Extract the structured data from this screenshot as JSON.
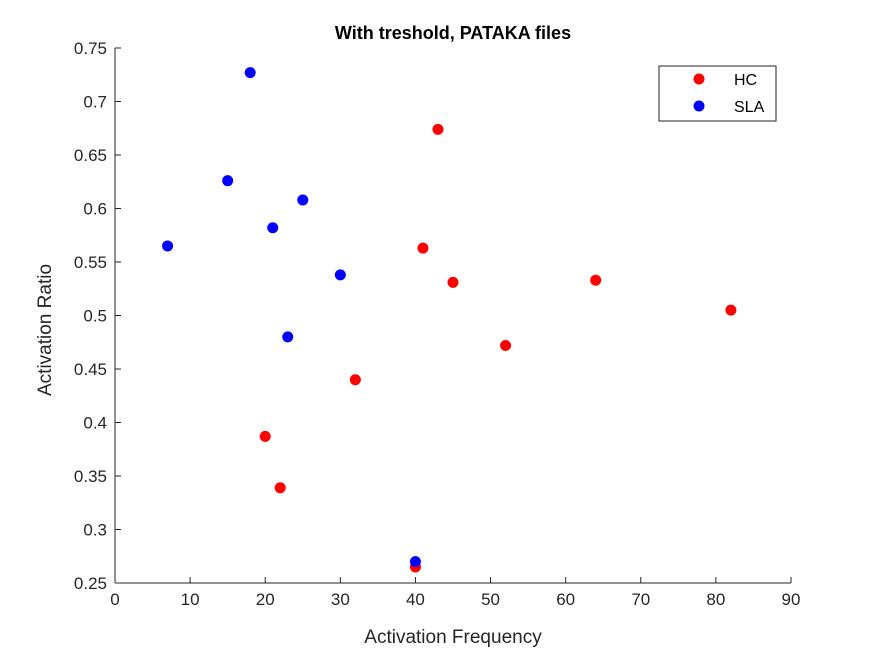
{
  "chart_data": {
    "type": "scatter",
    "title": "With treshold, PATAKA files",
    "xlabel": "Activation Frequency",
    "ylabel": "Activation Ratio",
    "xlim": [
      0,
      90
    ],
    "ylim": [
      0.25,
      0.75
    ],
    "xticks": [
      0,
      10,
      20,
      30,
      40,
      50,
      60,
      70,
      80,
      90
    ],
    "yticks": [
      0.25,
      0.3,
      0.35,
      0.4,
      0.45,
      0.5,
      0.55,
      0.6,
      0.65,
      0.7,
      0.75
    ],
    "xtick_labels": [
      "0",
      "10",
      "20",
      "30",
      "40",
      "50",
      "60",
      "70",
      "80",
      "90"
    ],
    "ytick_labels": [
      "0.25",
      "0.3",
      "0.35",
      "0.4",
      "0.45",
      "0.5",
      "0.55",
      "0.6",
      "0.65",
      "0.7",
      "0.75"
    ],
    "grid": false,
    "legend_position": "top-right",
    "series": [
      {
        "name": "HC",
        "color": "#ff0000",
        "points": [
          {
            "x": 43,
            "y": 0.674
          },
          {
            "x": 41,
            "y": 0.563
          },
          {
            "x": 45,
            "y": 0.531
          },
          {
            "x": 64,
            "y": 0.533
          },
          {
            "x": 82,
            "y": 0.505
          },
          {
            "x": 52,
            "y": 0.472
          },
          {
            "x": 32,
            "y": 0.44
          },
          {
            "x": 20,
            "y": 0.387
          },
          {
            "x": 22,
            "y": 0.339
          },
          {
            "x": 40,
            "y": 0.265
          }
        ]
      },
      {
        "name": "SLA",
        "color": "#0000ff",
        "points": [
          {
            "x": 18,
            "y": 0.727
          },
          {
            "x": 15,
            "y": 0.626
          },
          {
            "x": 25,
            "y": 0.608
          },
          {
            "x": 7,
            "y": 0.565
          },
          {
            "x": 21,
            "y": 0.582
          },
          {
            "x": 30,
            "y": 0.538
          },
          {
            "x": 23,
            "y": 0.48
          },
          {
            "x": 40,
            "y": 0.27
          }
        ]
      }
    ]
  }
}
